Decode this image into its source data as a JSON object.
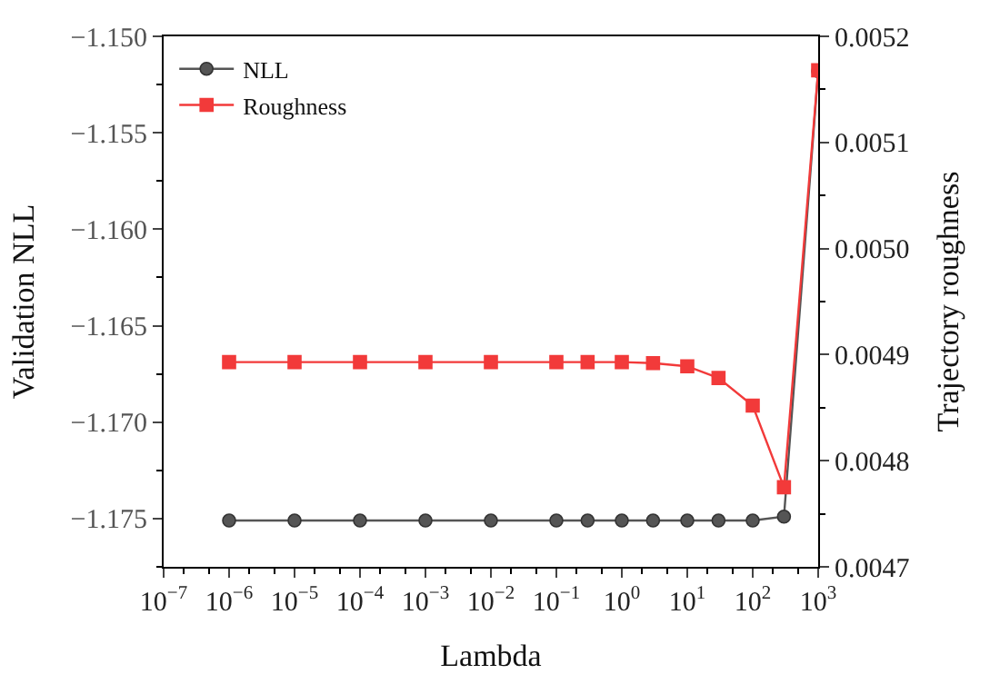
{
  "chart_data": {
    "type": "line",
    "xlabel": "Lambda",
    "ylabel": "Validation NLL",
    "y2label": "Trajectory roughness",
    "x": [
      1e-06,
      1e-05,
      0.0001,
      0.001,
      0.01,
      0.1,
      0.3,
      1,
      3,
      10,
      30,
      100,
      300,
      1000
    ],
    "series": [
      {
        "name": "NLL",
        "color": "#555555",
        "marker": "circle",
        "values": [
          -1.1751,
          -1.1751,
          -1.1751,
          -1.1751,
          -1.1751,
          -1.1751,
          -1.1751,
          -1.1751,
          -1.1751,
          -1.1751,
          -1.1751,
          -1.1751,
          -1.1749,
          -1.1518
        ]
      },
      {
        "name": "Roughness",
        "color": "#f23a3a",
        "marker": "square",
        "axis": "y2",
        "values": [
          0.004893,
          0.004893,
          0.004893,
          0.004893,
          0.004893,
          0.004893,
          0.004893,
          0.004893,
          0.004892,
          0.004889,
          0.004878,
          0.004852,
          0.004775,
          0.005168
        ]
      }
    ],
    "log": "x",
    "xlim": [
      1e-07,
      1000
    ],
    "xticks": [
      {
        "value": 1e-07,
        "label": "10$^{−7}$"
      },
      {
        "value": 1e-06,
        "label": "10$^{−6}$"
      },
      {
        "value": 1e-05,
        "label": "10$^{−5}$"
      },
      {
        "value": 0.0001,
        "label": "10$^{−4}$"
      },
      {
        "value": 0.001,
        "label": "10$^{−3}$"
      },
      {
        "value": 0.01,
        "label": "10$^{−2}$"
      },
      {
        "value": 0.1,
        "label": "10$^{−1}$"
      },
      {
        "value": 1,
        "label": "10$^{0}$"
      },
      {
        "value": 10,
        "label": "10$^{1}$"
      },
      {
        "value": 100,
        "label": "10$^{2}$"
      },
      {
        "value": 1000,
        "label": "10$^{3}$"
      }
    ],
    "ylim": [
      -1.1775,
      -1.15
    ],
    "yticks": [
      {
        "value": -1.175,
        "label": "−1.175"
      },
      {
        "value": -1.17,
        "label": "−1.170"
      },
      {
        "value": -1.165,
        "label": "−1.165"
      },
      {
        "value": -1.16,
        "label": "−1.160"
      },
      {
        "value": -1.155,
        "label": "−1.155"
      },
      {
        "value": -1.15,
        "label": "−1.150"
      }
    ],
    "y2lim": [
      0.0047,
      0.0052
    ],
    "y2ticks": [
      0.0047,
      0.0048,
      0.0049,
      {
        "value": 0.005,
        "label": "0.0050"
      },
      0.0051,
      0.0052
    ],
    "legend": "top left",
    "line_style": "solid"
  }
}
